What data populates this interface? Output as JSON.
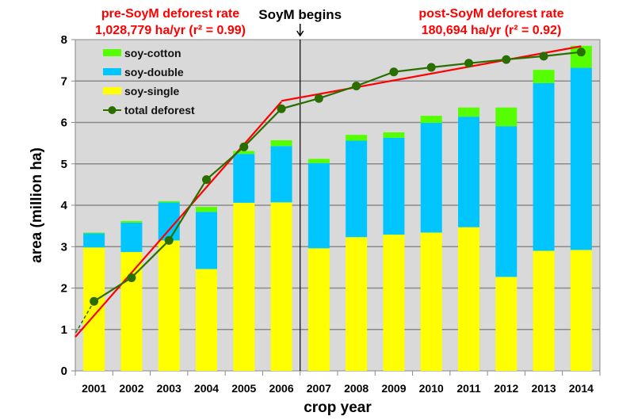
{
  "chart_data": {
    "type": "bar",
    "stacked": true,
    "categories": [
      "2001",
      "2002",
      "2003",
      "2004",
      "2005",
      "2006",
      "2007",
      "2008",
      "2009",
      "2010",
      "2011",
      "2012",
      "2013",
      "2014"
    ],
    "series": [
      {
        "name": "soy-single",
        "color": "#ffff00",
        "values": [
          2.98,
          2.87,
          3.15,
          2.46,
          4.06,
          4.07,
          2.96,
          3.23,
          3.29,
          3.34,
          3.47,
          2.27,
          2.9,
          2.92
        ]
      },
      {
        "name": "soy-double",
        "color": "#00c5ff",
        "values": [
          0.34,
          0.71,
          0.92,
          1.38,
          1.18,
          1.36,
          2.06,
          2.33,
          2.34,
          2.65,
          2.67,
          3.64,
          4.05,
          4.4
        ]
      },
      {
        "name": "soy-cotton",
        "color": "#55ff00",
        "values": [
          0.02,
          0.04,
          0.03,
          0.12,
          0.07,
          0.14,
          0.1,
          0.14,
          0.13,
          0.17,
          0.22,
          0.45,
          0.32,
          0.53
        ]
      }
    ],
    "line_series": {
      "name": "total deforest",
      "color": "#2a6e00",
      "values": [
        1.68,
        2.25,
        3.15,
        4.62,
        5.41,
        6.33,
        6.58,
        6.88,
        7.22,
        7.33,
        7.43,
        7.52,
        7.6,
        7.7
      ]
    },
    "trend_lines": [
      {
        "label_line1": "pre-SoyM deforest rate",
        "label_line2": "1,028,779 ha/yr (r² = 0.99)",
        "from": [
          2000.5,
          0.82
        ],
        "to": [
          2006,
          6.5
        ],
        "color": "#ff0000"
      },
      {
        "label_line1": "post-SoyM deforest rate",
        "label_line2": "180,694 ha/yr (r² = 0.92)",
        "from": [
          2006,
          6.52
        ],
        "to": [
          2014,
          7.84
        ],
        "color": "#ff0000"
      }
    ],
    "annotation": "SoyM begins",
    "annotation_x": 2006.5,
    "xlabel": "crop year",
    "ylabel": "area (million ha)",
    "ylim": [
      0,
      8
    ],
    "yticks": [
      "0",
      "1",
      "2",
      "3",
      "4",
      "5",
      "6",
      "7",
      "8"
    ],
    "grid": true,
    "legend_placement": "top-left",
    "legend_order": [
      "soy-cotton",
      "soy-double",
      "soy-single",
      "total deforest"
    ]
  }
}
